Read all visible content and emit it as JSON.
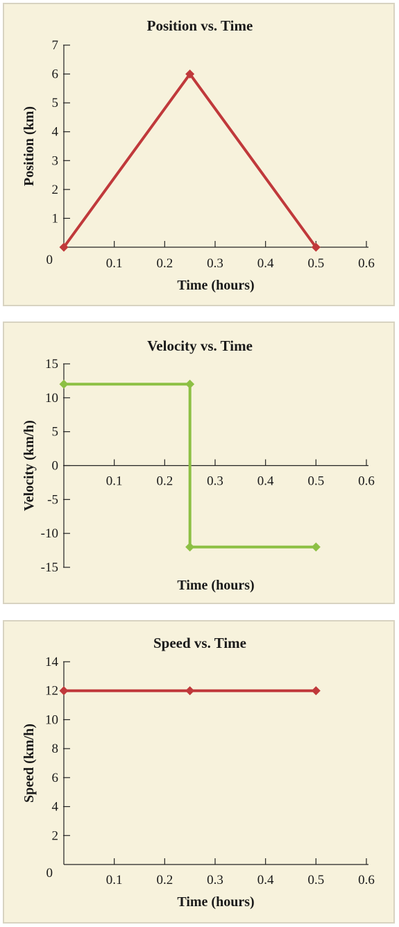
{
  "chart_data": [
    {
      "type": "line",
      "title": "Position vs. Time",
      "xlabel": "Time (hours)",
      "ylabel": "Position (km)",
      "xlim": [
        0,
        0.6
      ],
      "ylim": [
        0,
        7
      ],
      "x_ticks": [
        "0.1",
        "0.2",
        "0.3",
        "0.4",
        "0.5",
        "0.6"
      ],
      "y_ticks": [
        "0",
        "1",
        "2",
        "3",
        "4",
        "5",
        "6",
        "7"
      ],
      "grid": false,
      "series": [
        {
          "color": "#c0393b",
          "marker": "diamond",
          "x": [
            0,
            0.25,
            0.5
          ],
          "y": [
            0,
            6,
            0
          ]
        }
      ]
    },
    {
      "type": "line",
      "title": "Velocity vs. Time",
      "xlabel": "Time (hours)",
      "ylabel": "Velocity (km/h)",
      "xlim": [
        0,
        0.6
      ],
      "ylim": [
        -15,
        15
      ],
      "x_ticks": [
        "0.1",
        "0.2",
        "0.3",
        "0.4",
        "0.5",
        "0.6"
      ],
      "y_ticks": [
        "-15",
        "-10",
        "-5",
        "0",
        "5",
        "10",
        "15"
      ],
      "grid": false,
      "series": [
        {
          "color": "#8dc044",
          "marker": "diamond",
          "x": [
            0,
            0.25,
            0.25,
            0.5
          ],
          "y": [
            12,
            12,
            -12,
            -12
          ]
        }
      ]
    },
    {
      "type": "line",
      "title": "Speed vs. Time",
      "xlabel": "Time (hours)",
      "ylabel": "Speed (km/h)",
      "xlim": [
        0,
        0.6
      ],
      "ylim": [
        0,
        14
      ],
      "x_ticks": [
        "0.1",
        "0.2",
        "0.3",
        "0.4",
        "0.5",
        "0.6"
      ],
      "y_ticks": [
        "0",
        "2",
        "4",
        "6",
        "8",
        "10",
        "12",
        "14"
      ],
      "grid": false,
      "series": [
        {
          "color": "#c0393b",
          "marker": "diamond",
          "x": [
            0,
            0.25,
            0.5
          ],
          "y": [
            12,
            12,
            12
          ]
        }
      ]
    }
  ]
}
